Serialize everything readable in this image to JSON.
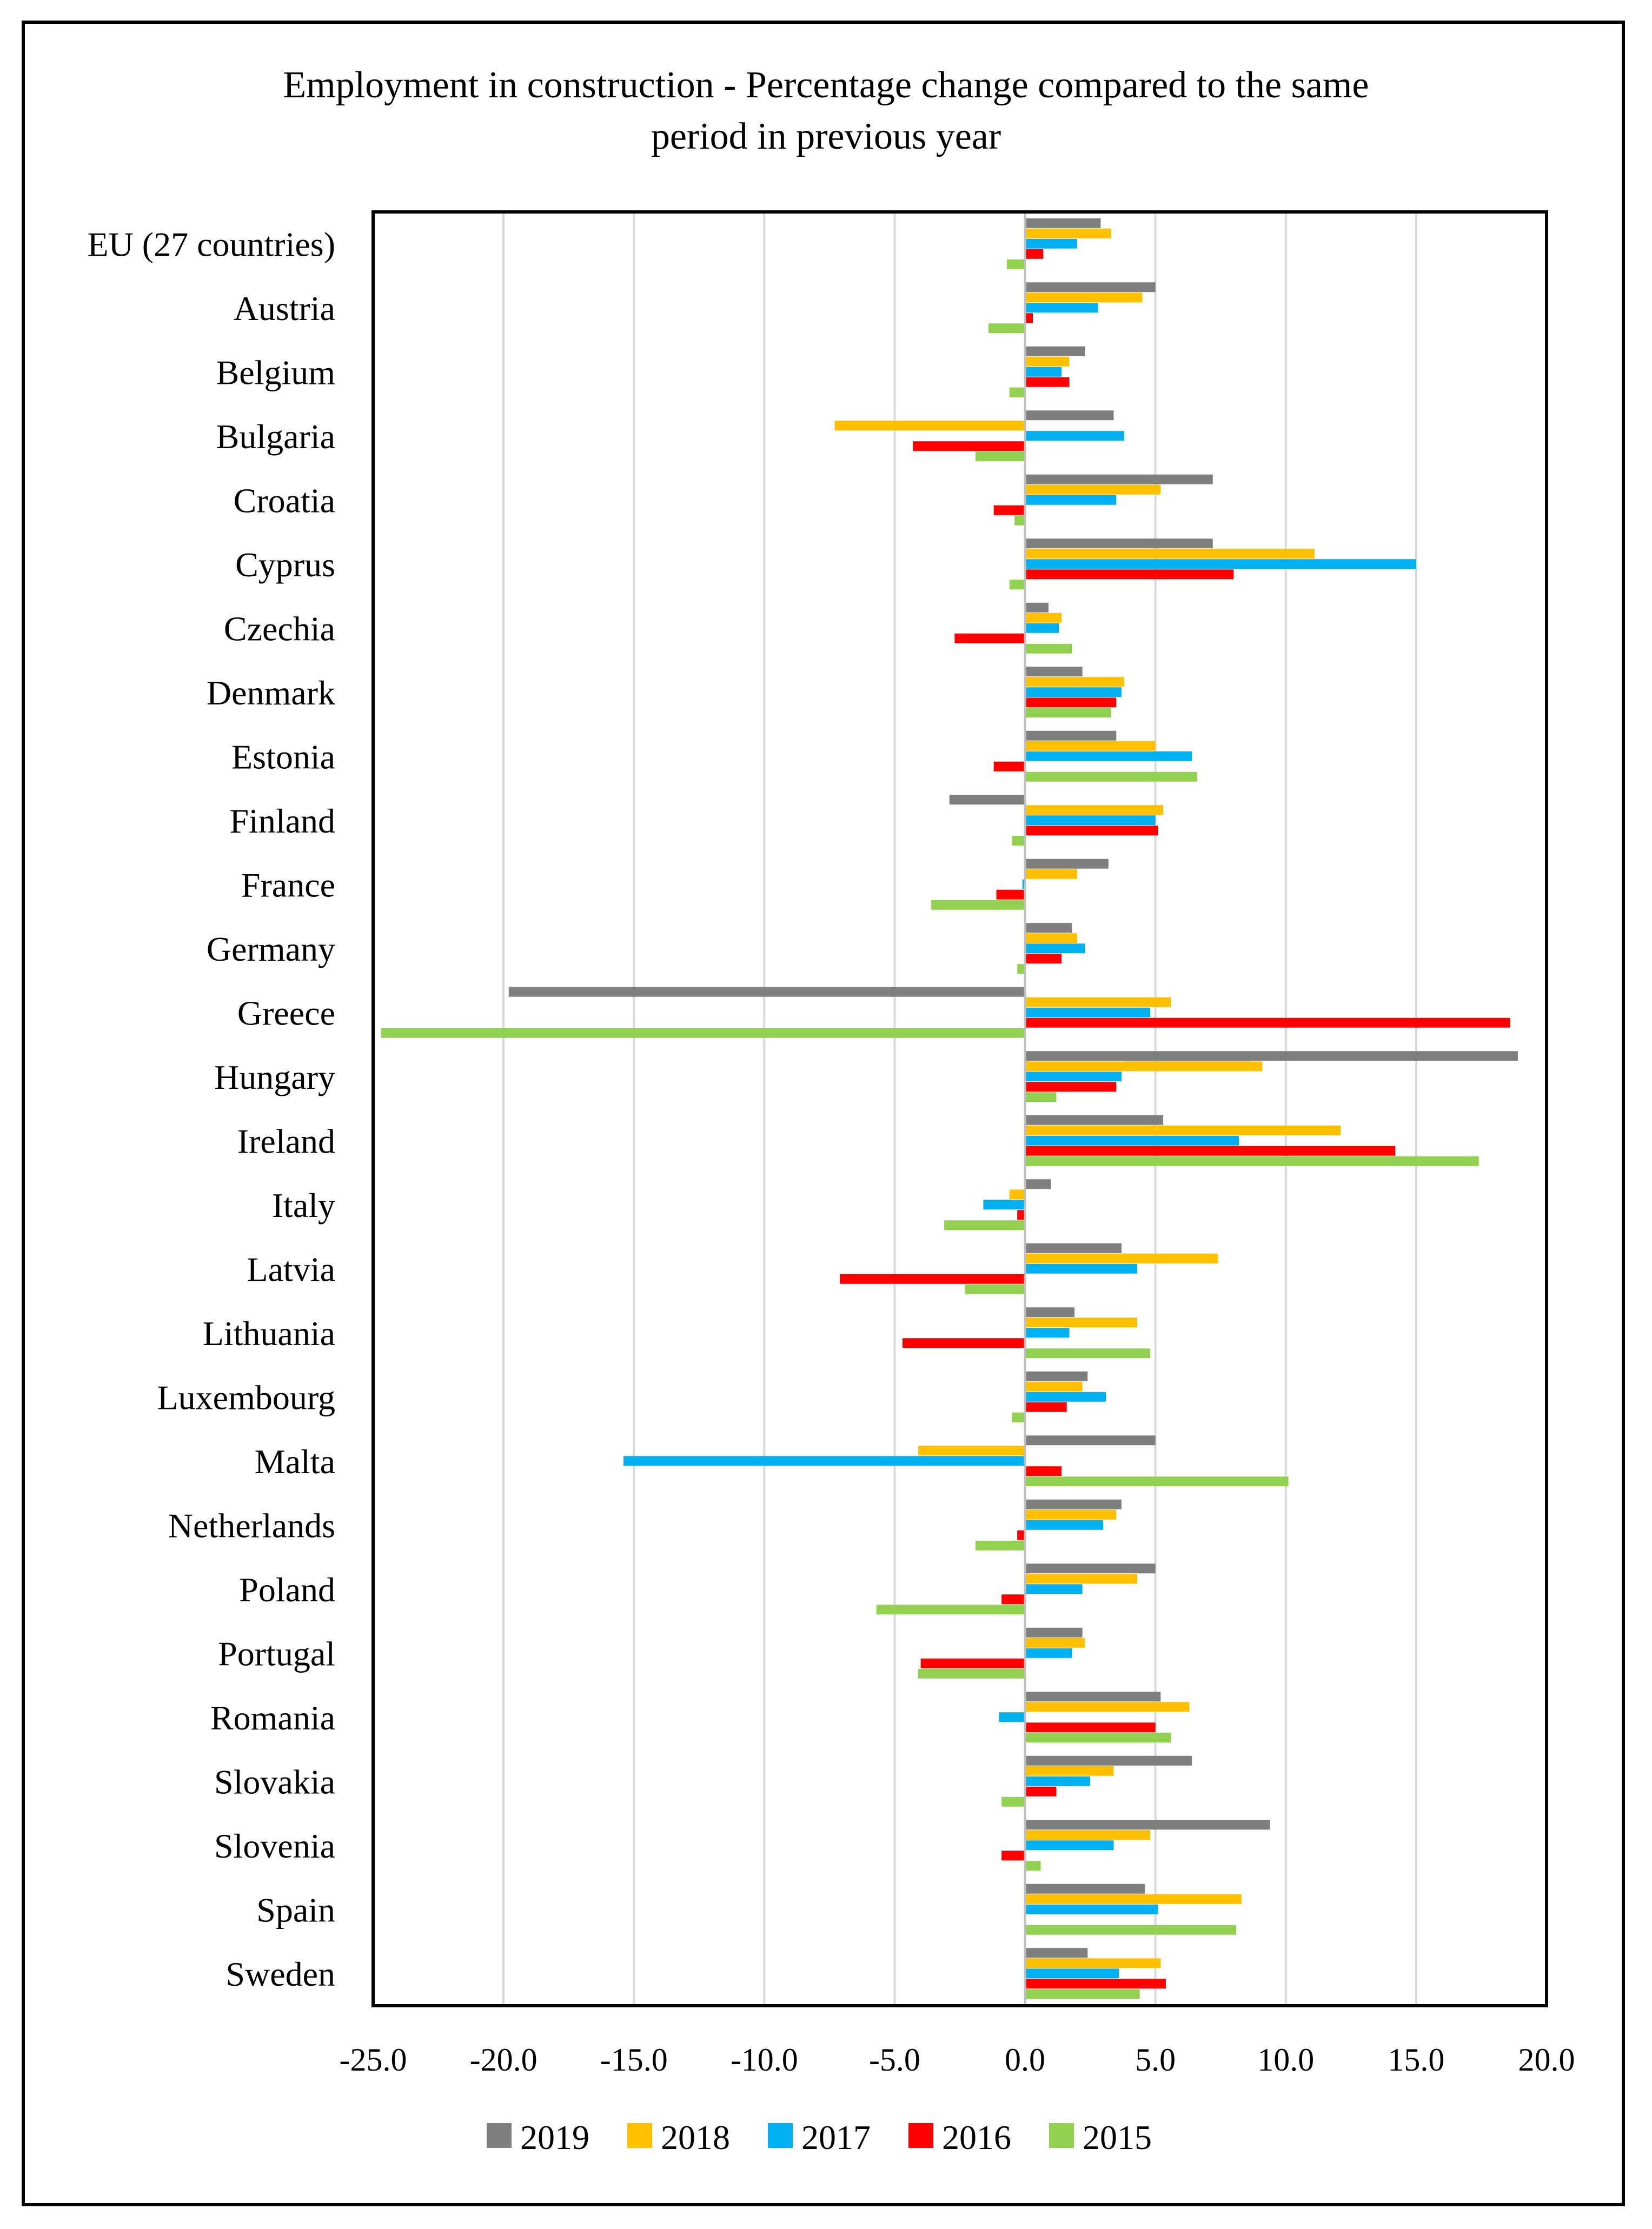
{
  "chart_data": {
    "type": "bar",
    "orientation": "horizontal",
    "title": "Employment in construction - Percentage change compared to the same period in previous year",
    "title_lines": [
      "Employment in construction - Percentage change compared to the same",
      "period in previous year"
    ],
    "xlabel": "",
    "ylabel": "",
    "xlim": [
      -25,
      20
    ],
    "xticks": [
      "-25.0",
      "-20.0",
      "-15.0",
      "-10.0",
      "-5.0",
      "0.0",
      "5.0",
      "10.0",
      "15.0",
      "20.0"
    ],
    "grid": true,
    "legend_position": "bottom",
    "categories": [
      "EU (27 countries)",
      "Austria",
      "Belgium",
      "Bulgaria",
      "Croatia",
      "Cyprus",
      "Czechia",
      "Denmark",
      "Estonia",
      "Finland",
      "France",
      "Germany",
      "Greece",
      "Hungary",
      "Ireland",
      "Italy",
      "Latvia",
      "Lithuania",
      "Luxembourg",
      "Malta",
      "Netherlands",
      "Poland",
      "Portugal",
      "Romania",
      "Slovakia",
      "Slovenia",
      "Spain",
      "Sweden"
    ],
    "series": [
      {
        "name": "2019",
        "color": "#7f7f7f",
        "values": [
          2.9,
          5.0,
          2.3,
          3.4,
          7.2,
          7.2,
          0.9,
          2.2,
          3.5,
          -2.9,
          3.2,
          1.8,
          -19.8,
          18.9,
          5.3,
          1.0,
          3.7,
          1.9,
          2.4,
          5.0,
          3.7,
          5.0,
          2.2,
          5.2,
          6.4,
          9.4,
          4.6,
          2.4
        ]
      },
      {
        "name": "2018",
        "color": "#ffc000",
        "values": [
          3.3,
          4.5,
          1.7,
          -7.3,
          5.2,
          11.1,
          1.4,
          3.8,
          5.0,
          5.3,
          2.0,
          2.0,
          5.6,
          9.1,
          12.1,
          -0.6,
          7.4,
          4.3,
          2.2,
          -4.1,
          3.5,
          4.3,
          2.3,
          6.3,
          3.4,
          4.8,
          8.3,
          5.2
        ]
      },
      {
        "name": "2017",
        "color": "#00b0f0",
        "values": [
          2.0,
          2.8,
          1.4,
          3.8,
          3.5,
          15.0,
          1.3,
          3.7,
          6.4,
          5.0,
          -0.1,
          2.3,
          4.8,
          3.7,
          8.2,
          -1.6,
          4.3,
          1.7,
          3.1,
          -15.4,
          3.0,
          2.2,
          1.8,
          -1.0,
          2.5,
          3.4,
          5.1,
          3.6
        ]
      },
      {
        "name": "2016",
        "color": "#ff0000",
        "values": [
          0.7,
          0.3,
          1.7,
          -4.3,
          -1.2,
          8.0,
          -2.7,
          3.5,
          -1.2,
          5.1,
          -1.1,
          1.4,
          18.6,
          3.5,
          14.2,
          -0.3,
          -7.1,
          -4.7,
          1.6,
          1.4,
          -0.3,
          -0.9,
          -4.0,
          5.0,
          1.2,
          -0.9,
          0.0,
          5.4
        ]
      },
      {
        "name": "2015",
        "color": "#92d050",
        "values": [
          -0.7,
          -1.4,
          -0.6,
          -1.9,
          -0.4,
          -0.6,
          1.8,
          3.3,
          6.6,
          -0.5,
          -3.6,
          -0.3,
          -24.7,
          1.2,
          17.4,
          -3.1,
          -2.3,
          4.8,
          -0.5,
          10.1,
          -1.9,
          -5.7,
          -4.1,
          5.6,
          -0.9,
          0.6,
          8.1,
          4.4
        ]
      }
    ]
  }
}
